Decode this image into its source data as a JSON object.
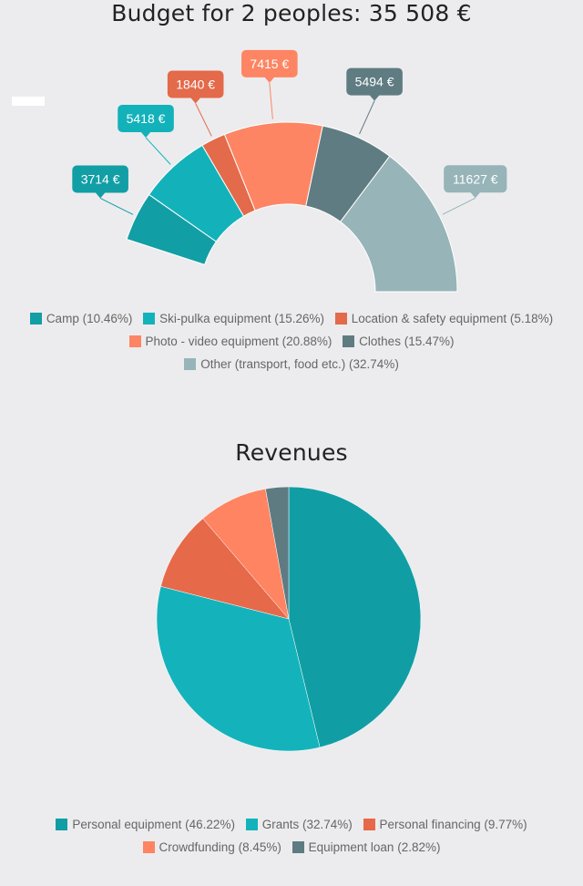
{
  "chart_data": [
    {
      "type": "pie",
      "title": "Budget for 2 peoples: 35 508 €",
      "style": "semi-donut",
      "slices": [
        {
          "label": "Camp",
          "value": 3714,
          "percent_label": "10.46%",
          "value_label": "3714 €",
          "color": "#129ea5"
        },
        {
          "label": "Ski-pulka equipment",
          "value": 5418,
          "percent_label": "15.26%",
          "value_label": "5418 €",
          "color": "#13b2ba"
        },
        {
          "label": "Location & safety equipment",
          "value": 1840,
          "percent_label": "5.18%",
          "value_label": "1840 €",
          "color": "#e36a4a"
        },
        {
          "label": "Photo - video equipment",
          "value": 7415,
          "percent_label": "20.88%",
          "value_label": "7415 €",
          "color": "#fd8563"
        },
        {
          "label": "Clothes",
          "value": 5494,
          "percent_label": "15.47%",
          "value_label": "5494 €",
          "color": "#5f7c82"
        },
        {
          "label": "Other (transport, food etc.)",
          "value": 11627,
          "percent_label": "32.74%",
          "value_label": "11627 €",
          "color": "#97b4b8"
        }
      ]
    },
    {
      "type": "pie",
      "title": "Revenues",
      "slices": [
        {
          "label": "Personal equipment",
          "value": 46.22,
          "percent_label": "46.22%",
          "color": "#109ea4"
        },
        {
          "label": "Grants",
          "value": 32.74,
          "percent_label": "32.74%",
          "color": "#14b3bb"
        },
        {
          "label": "Personal financing",
          "value": 9.77,
          "percent_label": "9.77%",
          "color": "#e6694a"
        },
        {
          "label": "Crowdfunding",
          "value": 8.45,
          "percent_label": "8.45%",
          "color": "#fe8462"
        },
        {
          "label": "Equipment loan",
          "value": 2.82,
          "percent_label": "2.82%",
          "color": "#5e7b82"
        }
      ]
    }
  ]
}
